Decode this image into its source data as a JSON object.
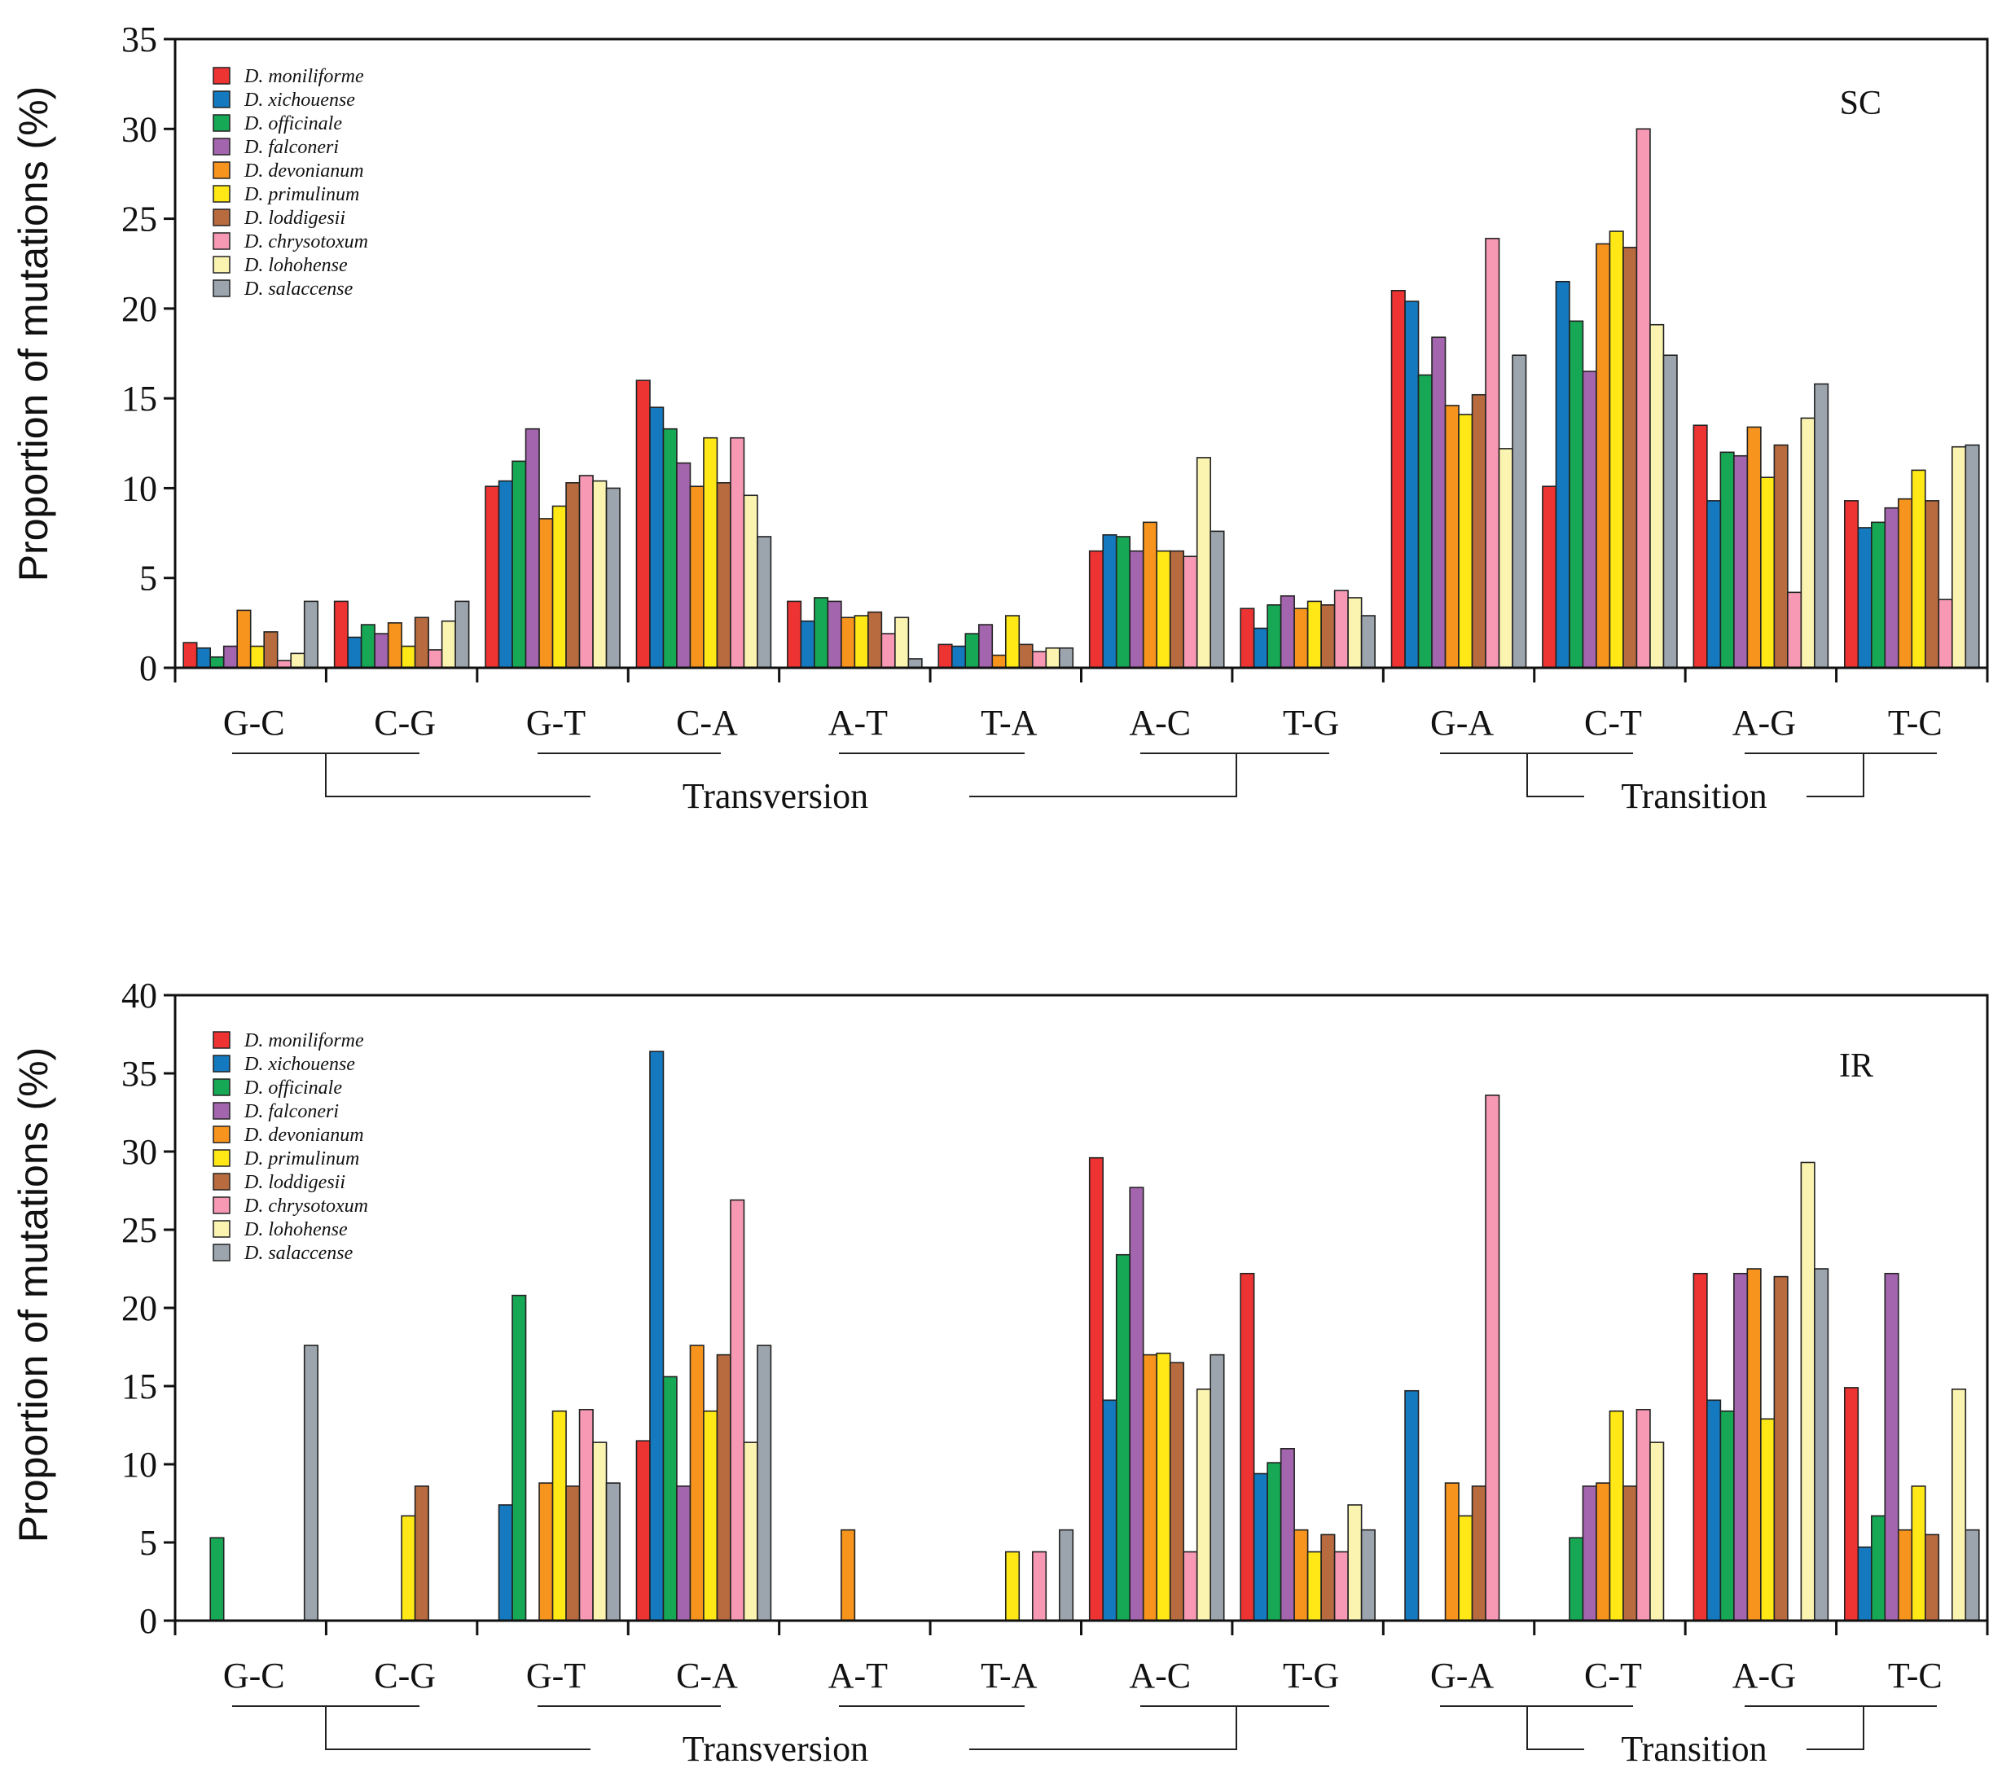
{
  "species": [
    {
      "name": "D. moniliforme",
      "color": "#ee3333"
    },
    {
      "name": "D. xichouense",
      "color": "#1479bf"
    },
    {
      "name": "D. officinale",
      "color": "#16a855"
    },
    {
      "name": "D. falconeri",
      "color": "#a365ad"
    },
    {
      "name": "D. devonianum",
      "color": "#f7941d"
    },
    {
      "name": "D. primulinum",
      "color": "#ffe816"
    },
    {
      "name": "D. loddigesii",
      "color": "#b86b3f"
    },
    {
      "name": "D. chrysotoxum",
      "color": "#f799b4"
    },
    {
      "name": "D. lohohense",
      "color": "#fbf3b0"
    },
    {
      "name": "D. salaccense",
      "color": "#9ca5ad"
    }
  ],
  "categories": [
    "G-C",
    "C-G",
    "G-T",
    "C-A",
    "A-T",
    "T-A",
    "A-C",
    "T-G",
    "G-A",
    "C-T",
    "A-G",
    "T-C"
  ],
  "group_labels": {
    "transversion": "Transversion",
    "transition": "Transition"
  },
  "chart_data": [
    {
      "type": "bar",
      "panel": "SC",
      "ylabel": "Proportion of mutations (%)",
      "ylim": [
        0,
        35
      ],
      "yticks": [
        "0",
        "5",
        "10",
        "15",
        "20",
        "25",
        "30",
        "35"
      ],
      "categories": [
        "G-C",
        "C-G",
        "G-T",
        "C-A",
        "A-T",
        "T-A",
        "A-C",
        "T-G",
        "G-A",
        "C-T",
        "A-G",
        "T-C"
      ],
      "series": [
        {
          "name": "D. moniliforme",
          "values": [
            1.4,
            3.7,
            10.1,
            16.0,
            3.7,
            1.3,
            6.5,
            3.3,
            21.0,
            10.1,
            13.5,
            9.3
          ]
        },
        {
          "name": "D. xichouense",
          "values": [
            1.1,
            1.7,
            10.4,
            14.5,
            2.6,
            1.2,
            7.4,
            2.2,
            20.4,
            21.5,
            9.3,
            7.8
          ]
        },
        {
          "name": "D. officinale",
          "values": [
            0.6,
            2.4,
            11.5,
            13.3,
            3.9,
            1.9,
            7.3,
            3.5,
            16.3,
            19.3,
            12.0,
            8.1
          ]
        },
        {
          "name": "D. falconeri",
          "values": [
            1.2,
            1.9,
            13.3,
            11.4,
            3.7,
            2.4,
            6.5,
            4.0,
            18.4,
            16.5,
            11.8,
            8.9
          ]
        },
        {
          "name": "D. devonianum",
          "values": [
            3.2,
            2.5,
            8.3,
            10.1,
            2.8,
            0.7,
            8.1,
            3.3,
            14.6,
            23.6,
            13.4,
            9.4
          ]
        },
        {
          "name": "D. primulinum",
          "values": [
            1.2,
            1.2,
            9.0,
            12.8,
            2.9,
            2.9,
            6.5,
            3.7,
            14.1,
            24.3,
            10.6,
            11.0
          ]
        },
        {
          "name": "D. loddigesii",
          "values": [
            2.0,
            2.8,
            10.3,
            10.3,
            3.1,
            1.3,
            6.5,
            3.5,
            15.2,
            23.4,
            12.4,
            9.3
          ]
        },
        {
          "name": "D. chrysotoxum",
          "values": [
            0.4,
            1.0,
            10.7,
            12.8,
            1.9,
            0.9,
            6.2,
            4.3,
            23.9,
            30.0,
            4.2,
            3.8
          ]
        },
        {
          "name": "D. lohohense",
          "values": [
            0.8,
            2.6,
            10.4,
            9.6,
            2.8,
            1.1,
            11.7,
            3.9,
            12.2,
            19.1,
            13.9,
            12.3
          ]
        },
        {
          "name": "D. salaccense",
          "values": [
            3.7,
            3.7,
            10.0,
            7.3,
            0.5,
            1.1,
            7.6,
            2.9,
            17.4,
            17.4,
            15.8,
            12.4
          ]
        }
      ]
    },
    {
      "type": "bar",
      "panel": "IR",
      "ylabel": "Proportion of mutations (%)",
      "ylim": [
        0,
        40
      ],
      "yticks": [
        "0",
        "5",
        "10",
        "15",
        "20",
        "25",
        "30",
        "35",
        "40"
      ],
      "categories": [
        "G-C",
        "C-G",
        "G-T",
        "C-A",
        "A-T",
        "T-A",
        "A-C",
        "T-G",
        "G-A",
        "C-T",
        "A-G",
        "T-C"
      ],
      "series": [
        {
          "name": "D. moniliforme",
          "values": [
            0,
            0,
            0,
            11.5,
            0,
            0,
            29.6,
            22.2,
            0,
            0,
            22.2,
            14.9
          ]
        },
        {
          "name": "D. xichouense",
          "values": [
            0,
            0,
            7.4,
            36.4,
            0,
            0,
            14.1,
            9.4,
            14.7,
            0,
            14.1,
            4.7
          ]
        },
        {
          "name": "D. officinale",
          "values": [
            5.3,
            0,
            20.8,
            15.6,
            0,
            0,
            23.4,
            10.1,
            0,
            5.3,
            13.4,
            6.7
          ]
        },
        {
          "name": "D. falconeri",
          "values": [
            0,
            0,
            0,
            8.6,
            0,
            0,
            27.7,
            11.0,
            0,
            8.6,
            22.2,
            22.2
          ]
        },
        {
          "name": "D. devonianum",
          "values": [
            0,
            0,
            8.8,
            17.6,
            5.8,
            0,
            17.0,
            5.8,
            8.8,
            8.8,
            22.5,
            5.8
          ]
        },
        {
          "name": "D. primulinum",
          "values": [
            0,
            6.7,
            13.4,
            13.4,
            0,
            4.4,
            17.1,
            4.4,
            6.7,
            13.4,
            12.9,
            8.6
          ]
        },
        {
          "name": "D. loddigesii",
          "values": [
            0,
            8.6,
            8.6,
            17.0,
            0,
            0,
            16.5,
            5.5,
            8.6,
            8.6,
            22.0,
            5.5
          ]
        },
        {
          "name": "D. chrysotoxum",
          "values": [
            0,
            0,
            13.5,
            26.9,
            0,
            4.4,
            4.4,
            4.4,
            33.6,
            13.5,
            0,
            0
          ]
        },
        {
          "name": "D. lohohense",
          "values": [
            0,
            0,
            11.4,
            11.4,
            0,
            0,
            14.8,
            7.4,
            0,
            11.4,
            29.3,
            14.8
          ]
        },
        {
          "name": "D. salaccense",
          "values": [
            17.6,
            0,
            8.8,
            17.6,
            0,
            5.8,
            17.0,
            5.8,
            0,
            0,
            22.5,
            5.8
          ]
        }
      ]
    }
  ]
}
